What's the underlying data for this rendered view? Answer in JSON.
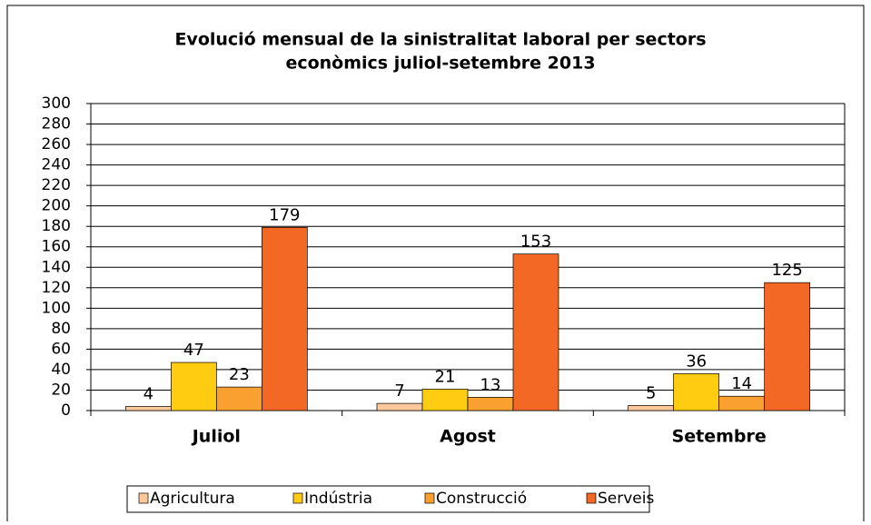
{
  "chart_data": {
    "type": "bar",
    "title": "Evolució mensual de la sinistralitat laboral per sectors",
    "subtitle": "econòmics juliol-setembre 2013",
    "categories": [
      "Juliol",
      "Agost",
      "Setembre"
    ],
    "series": [
      {
        "name": "Agricultura",
        "color": "#fcc89a",
        "values": [
          4,
          7,
          5
        ]
      },
      {
        "name": "Indústria",
        "color": "#ffcc11",
        "values": [
          47,
          21,
          36
        ]
      },
      {
        "name": "Construcció",
        "color": "#f9a030",
        "values": [
          23,
          13,
          14
        ]
      },
      {
        "name": "Serveis",
        "color": "#f26824",
        "values": [
          179,
          153,
          125
        ]
      }
    ],
    "ylim": [
      0,
      300
    ],
    "yticks": [
      0,
      20,
      40,
      60,
      80,
      100,
      120,
      140,
      160,
      180,
      200,
      220,
      240,
      260,
      280,
      300
    ],
    "grid": true,
    "legend": "bottom"
  }
}
